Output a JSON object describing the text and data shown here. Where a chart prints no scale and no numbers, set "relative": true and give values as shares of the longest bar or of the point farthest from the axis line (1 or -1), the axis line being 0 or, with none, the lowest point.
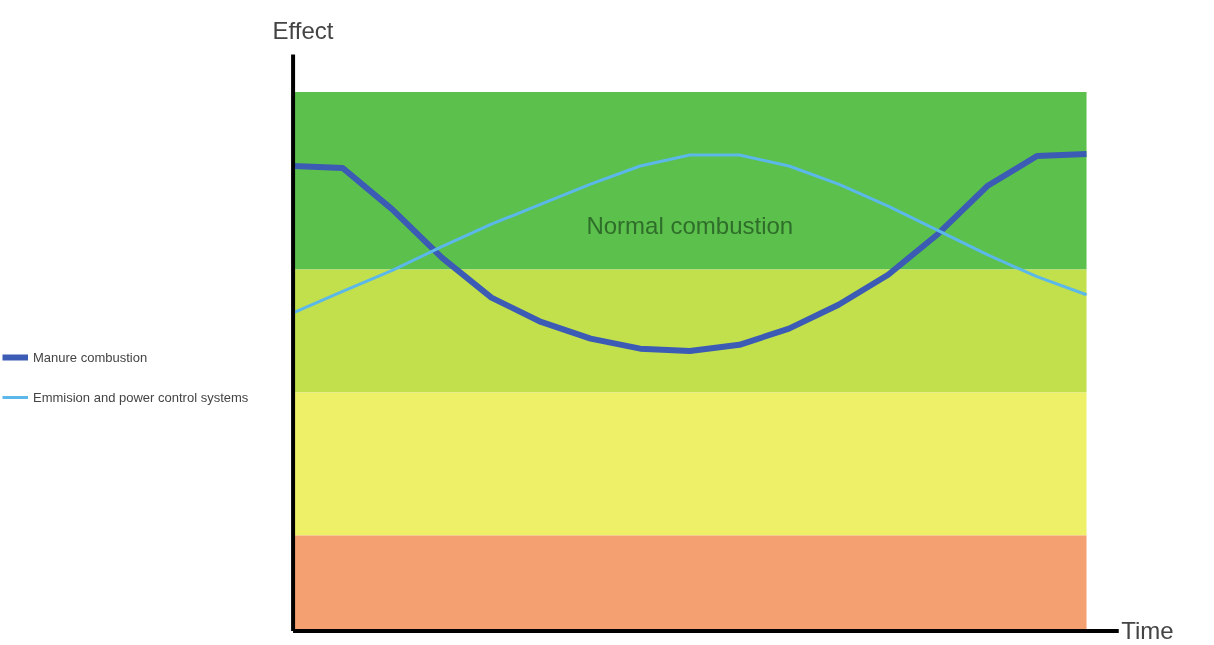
{
  "chart_data": {
    "type": "line",
    "relative": true,
    "xlabel": "Time",
    "ylabel": "Effect",
    "legend": "left",
    "grid": false,
    "marker": "none",
    "line_style": "solid",
    "categories": [
      null,
      null,
      null,
      null,
      null,
      null,
      null,
      null,
      null,
      null,
      null,
      null,
      null,
      null,
      null,
      null,
      null
    ],
    "series": [
      {
        "name": "Manure combustion",
        "color": "#3b5bb5",
        "values": [
          0.975,
          0.971,
          0.884,
          0.783,
          0.699,
          0.648,
          0.613,
          0.592,
          0.587,
          0.6,
          0.634,
          0.684,
          0.747,
          0.832,
          0.933,
          0.996,
          1.0
        ]
      },
      {
        "name": "Emmision and power control systems",
        "color": "#5bb8e8",
        "values": [
          0.667,
          0.712,
          0.756,
          0.806,
          0.853,
          0.895,
          0.937,
          0.975,
          0.998,
          0.998,
          0.975,
          0.937,
          0.891,
          0.84,
          0.789,
          0.743,
          0.705
        ]
      }
    ],
    "bands": [
      {
        "axis": "y",
        "from": 0.758,
        "to": 1.13,
        "label": "Normal combustion",
        "color": "#5cc04c"
      },
      {
        "axis": "y",
        "from": 0.5,
        "to": 0.758,
        "label": null,
        "color": "#c2e04c"
      },
      {
        "axis": "y",
        "from": 0.2,
        "to": 0.5,
        "label": null,
        "color": "#eef068"
      },
      {
        "axis": "y",
        "from": 0,
        "to": 0.2,
        "label": null,
        "color": "#f5a070"
      }
    ]
  }
}
